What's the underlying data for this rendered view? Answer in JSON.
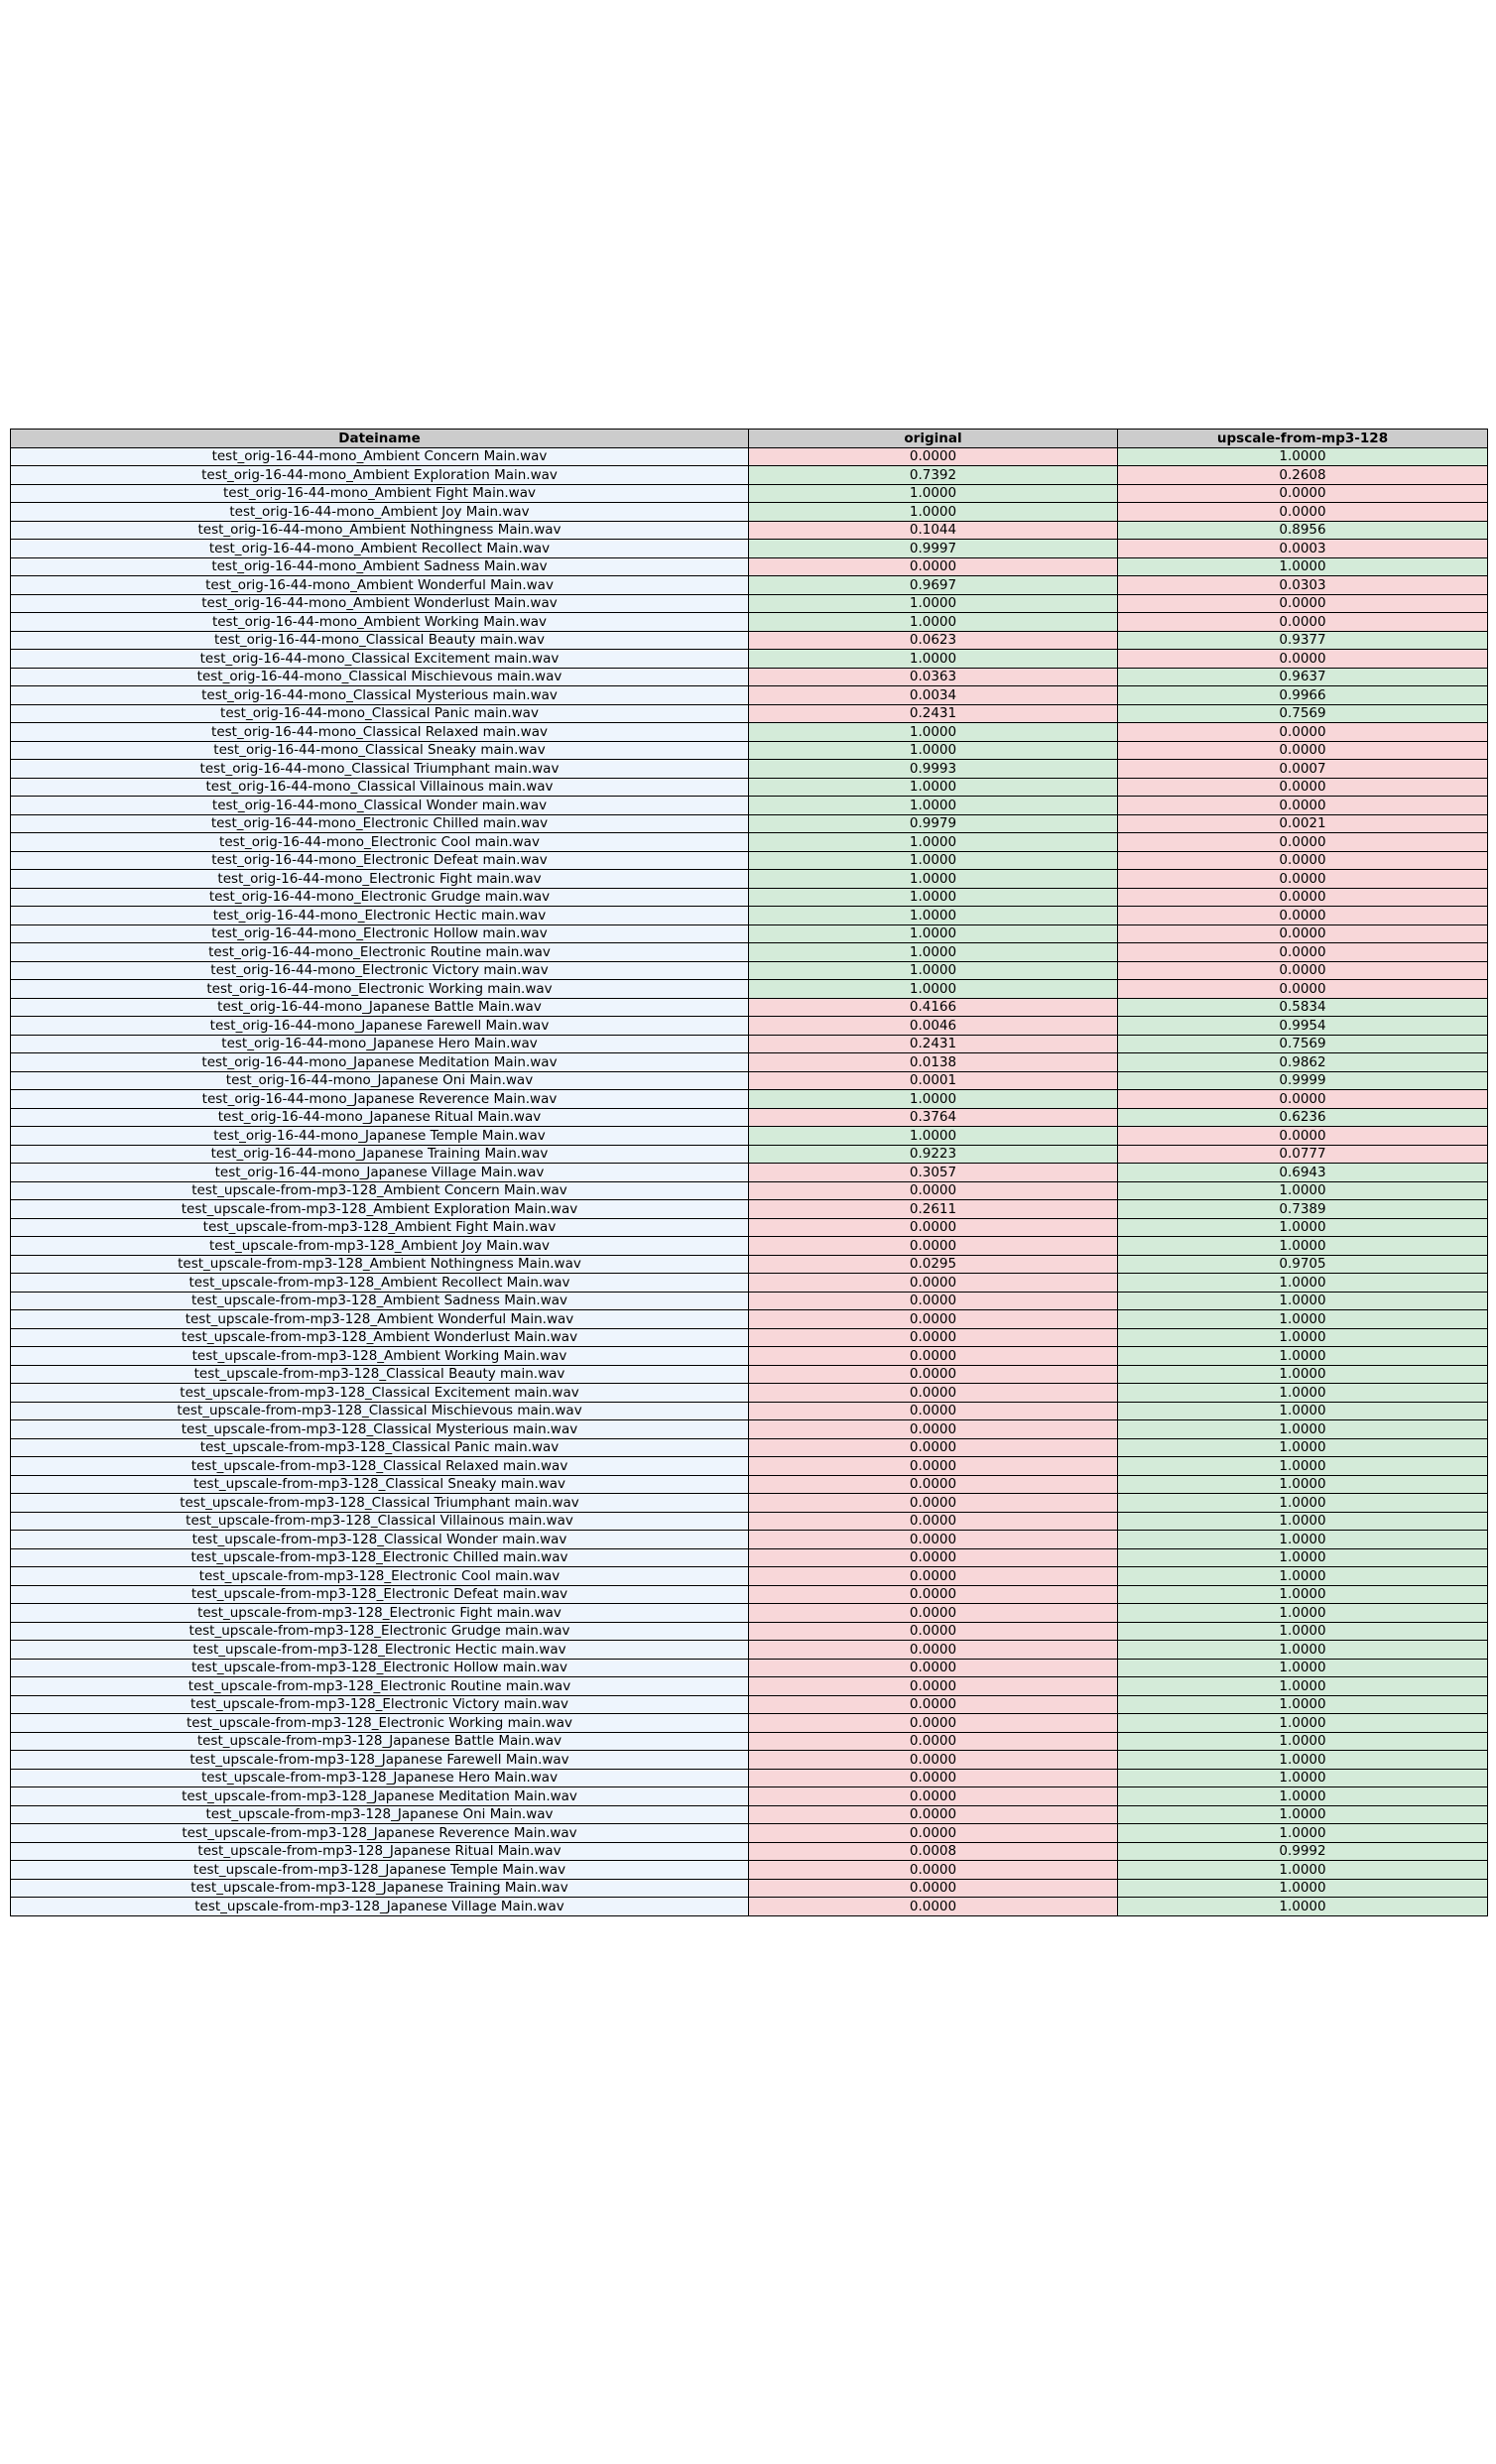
{
  "colors": {
    "header": "#cccccc",
    "name_cell": "#eef5fd",
    "high": "#d4ebd9",
    "low": "#f8d7d9"
  },
  "chart_data": {
    "type": "table",
    "columns": [
      "Dateiname",
      "original",
      "upscale-from-mp3-128"
    ],
    "rows": [
      [
        "test_orig-16-44-mono_Ambient Concern Main.wav",
        "0.0000",
        "1.0000"
      ],
      [
        "test_orig-16-44-mono_Ambient Exploration Main.wav",
        "0.7392",
        "0.2608"
      ],
      [
        "test_orig-16-44-mono_Ambient Fight Main.wav",
        "1.0000",
        "0.0000"
      ],
      [
        "test_orig-16-44-mono_Ambient Joy Main.wav",
        "1.0000",
        "0.0000"
      ],
      [
        "test_orig-16-44-mono_Ambient Nothingness Main.wav",
        "0.1044",
        "0.8956"
      ],
      [
        "test_orig-16-44-mono_Ambient Recollect Main.wav",
        "0.9997",
        "0.0003"
      ],
      [
        "test_orig-16-44-mono_Ambient Sadness Main.wav",
        "0.0000",
        "1.0000"
      ],
      [
        "test_orig-16-44-mono_Ambient Wonderful Main.wav",
        "0.9697",
        "0.0303"
      ],
      [
        "test_orig-16-44-mono_Ambient Wonderlust Main.wav",
        "1.0000",
        "0.0000"
      ],
      [
        "test_orig-16-44-mono_Ambient Working Main.wav",
        "1.0000",
        "0.0000"
      ],
      [
        "test_orig-16-44-mono_Classical Beauty main.wav",
        "0.0623",
        "0.9377"
      ],
      [
        "test_orig-16-44-mono_Classical Excitement main.wav",
        "1.0000",
        "0.0000"
      ],
      [
        "test_orig-16-44-mono_Classical Mischievous main.wav",
        "0.0363",
        "0.9637"
      ],
      [
        "test_orig-16-44-mono_Classical Mysterious main.wav",
        "0.0034",
        "0.9966"
      ],
      [
        "test_orig-16-44-mono_Classical Panic main.wav",
        "0.2431",
        "0.7569"
      ],
      [
        "test_orig-16-44-mono_Classical Relaxed main.wav",
        "1.0000",
        "0.0000"
      ],
      [
        "test_orig-16-44-mono_Classical Sneaky main.wav",
        "1.0000",
        "0.0000"
      ],
      [
        "test_orig-16-44-mono_Classical Triumphant main.wav",
        "0.9993",
        "0.0007"
      ],
      [
        "test_orig-16-44-mono_Classical Villainous main.wav",
        "1.0000",
        "0.0000"
      ],
      [
        "test_orig-16-44-mono_Classical Wonder main.wav",
        "1.0000",
        "0.0000"
      ],
      [
        "test_orig-16-44-mono_Electronic Chilled main.wav",
        "0.9979",
        "0.0021"
      ],
      [
        "test_orig-16-44-mono_Electronic Cool main.wav",
        "1.0000",
        "0.0000"
      ],
      [
        "test_orig-16-44-mono_Electronic Defeat main.wav",
        "1.0000",
        "0.0000"
      ],
      [
        "test_orig-16-44-mono_Electronic Fight main.wav",
        "1.0000",
        "0.0000"
      ],
      [
        "test_orig-16-44-mono_Electronic Grudge main.wav",
        "1.0000",
        "0.0000"
      ],
      [
        "test_orig-16-44-mono_Electronic Hectic main.wav",
        "1.0000",
        "0.0000"
      ],
      [
        "test_orig-16-44-mono_Electronic Hollow main.wav",
        "1.0000",
        "0.0000"
      ],
      [
        "test_orig-16-44-mono_Electronic Routine main.wav",
        "1.0000",
        "0.0000"
      ],
      [
        "test_orig-16-44-mono_Electronic Victory main.wav",
        "1.0000",
        "0.0000"
      ],
      [
        "test_orig-16-44-mono_Electronic Working main.wav",
        "1.0000",
        "0.0000"
      ],
      [
        "test_orig-16-44-mono_Japanese Battle Main.wav",
        "0.4166",
        "0.5834"
      ],
      [
        "test_orig-16-44-mono_Japanese Farewell Main.wav",
        "0.0046",
        "0.9954"
      ],
      [
        "test_orig-16-44-mono_Japanese Hero Main.wav",
        "0.2431",
        "0.7569"
      ],
      [
        "test_orig-16-44-mono_Japanese Meditation Main.wav",
        "0.0138",
        "0.9862"
      ],
      [
        "test_orig-16-44-mono_Japanese Oni Main.wav",
        "0.0001",
        "0.9999"
      ],
      [
        "test_orig-16-44-mono_Japanese Reverence Main.wav",
        "1.0000",
        "0.0000"
      ],
      [
        "test_orig-16-44-mono_Japanese Ritual Main.wav",
        "0.3764",
        "0.6236"
      ],
      [
        "test_orig-16-44-mono_Japanese Temple Main.wav",
        "1.0000",
        "0.0000"
      ],
      [
        "test_orig-16-44-mono_Japanese Training Main.wav",
        "0.9223",
        "0.0777"
      ],
      [
        "test_orig-16-44-mono_Japanese Village Main.wav",
        "0.3057",
        "0.6943"
      ],
      [
        "test_upscale-from-mp3-128_Ambient Concern Main.wav",
        "0.0000",
        "1.0000"
      ],
      [
        "test_upscale-from-mp3-128_Ambient Exploration Main.wav",
        "0.2611",
        "0.7389"
      ],
      [
        "test_upscale-from-mp3-128_Ambient Fight Main.wav",
        "0.0000",
        "1.0000"
      ],
      [
        "test_upscale-from-mp3-128_Ambient Joy Main.wav",
        "0.0000",
        "1.0000"
      ],
      [
        "test_upscale-from-mp3-128_Ambient Nothingness Main.wav",
        "0.0295",
        "0.9705"
      ],
      [
        "test_upscale-from-mp3-128_Ambient Recollect Main.wav",
        "0.0000",
        "1.0000"
      ],
      [
        "test_upscale-from-mp3-128_Ambient Sadness Main.wav",
        "0.0000",
        "1.0000"
      ],
      [
        "test_upscale-from-mp3-128_Ambient Wonderful Main.wav",
        "0.0000",
        "1.0000"
      ],
      [
        "test_upscale-from-mp3-128_Ambient Wonderlust Main.wav",
        "0.0000",
        "1.0000"
      ],
      [
        "test_upscale-from-mp3-128_Ambient Working Main.wav",
        "0.0000",
        "1.0000"
      ],
      [
        "test_upscale-from-mp3-128_Classical Beauty main.wav",
        "0.0000",
        "1.0000"
      ],
      [
        "test_upscale-from-mp3-128_Classical Excitement main.wav",
        "0.0000",
        "1.0000"
      ],
      [
        "test_upscale-from-mp3-128_Classical Mischievous main.wav",
        "0.0000",
        "1.0000"
      ],
      [
        "test_upscale-from-mp3-128_Classical Mysterious main.wav",
        "0.0000",
        "1.0000"
      ],
      [
        "test_upscale-from-mp3-128_Classical Panic main.wav",
        "0.0000",
        "1.0000"
      ],
      [
        "test_upscale-from-mp3-128_Classical Relaxed main.wav",
        "0.0000",
        "1.0000"
      ],
      [
        "test_upscale-from-mp3-128_Classical Sneaky main.wav",
        "0.0000",
        "1.0000"
      ],
      [
        "test_upscale-from-mp3-128_Classical Triumphant main.wav",
        "0.0000",
        "1.0000"
      ],
      [
        "test_upscale-from-mp3-128_Classical Villainous main.wav",
        "0.0000",
        "1.0000"
      ],
      [
        "test_upscale-from-mp3-128_Classical Wonder main.wav",
        "0.0000",
        "1.0000"
      ],
      [
        "test_upscale-from-mp3-128_Electronic Chilled main.wav",
        "0.0000",
        "1.0000"
      ],
      [
        "test_upscale-from-mp3-128_Electronic Cool main.wav",
        "0.0000",
        "1.0000"
      ],
      [
        "test_upscale-from-mp3-128_Electronic Defeat main.wav",
        "0.0000",
        "1.0000"
      ],
      [
        "test_upscale-from-mp3-128_Electronic Fight main.wav",
        "0.0000",
        "1.0000"
      ],
      [
        "test_upscale-from-mp3-128_Electronic Grudge main.wav",
        "0.0000",
        "1.0000"
      ],
      [
        "test_upscale-from-mp3-128_Electronic Hectic main.wav",
        "0.0000",
        "1.0000"
      ],
      [
        "test_upscale-from-mp3-128_Electronic Hollow main.wav",
        "0.0000",
        "1.0000"
      ],
      [
        "test_upscale-from-mp3-128_Electronic Routine main.wav",
        "0.0000",
        "1.0000"
      ],
      [
        "test_upscale-from-mp3-128_Electronic Victory main.wav",
        "0.0000",
        "1.0000"
      ],
      [
        "test_upscale-from-mp3-128_Electronic Working main.wav",
        "0.0000",
        "1.0000"
      ],
      [
        "test_upscale-from-mp3-128_Japanese Battle Main.wav",
        "0.0000",
        "1.0000"
      ],
      [
        "test_upscale-from-mp3-128_Japanese Farewell Main.wav",
        "0.0000",
        "1.0000"
      ],
      [
        "test_upscale-from-mp3-128_Japanese Hero Main.wav",
        "0.0000",
        "1.0000"
      ],
      [
        "test_upscale-from-mp3-128_Japanese Meditation Main.wav",
        "0.0000",
        "1.0000"
      ],
      [
        "test_upscale-from-mp3-128_Japanese Oni Main.wav",
        "0.0000",
        "1.0000"
      ],
      [
        "test_upscale-from-mp3-128_Japanese Reverence Main.wav",
        "0.0000",
        "1.0000"
      ],
      [
        "test_upscale-from-mp3-128_Japanese Ritual Main.wav",
        "0.0008",
        "0.9992"
      ],
      [
        "test_upscale-from-mp3-128_Japanese Temple Main.wav",
        "0.0000",
        "1.0000"
      ],
      [
        "test_upscale-from-mp3-128_Japanese Training Main.wav",
        "0.0000",
        "1.0000"
      ],
      [
        "test_upscale-from-mp3-128_Japanese Village Main.wav",
        "0.0000",
        "1.0000"
      ]
    ]
  }
}
